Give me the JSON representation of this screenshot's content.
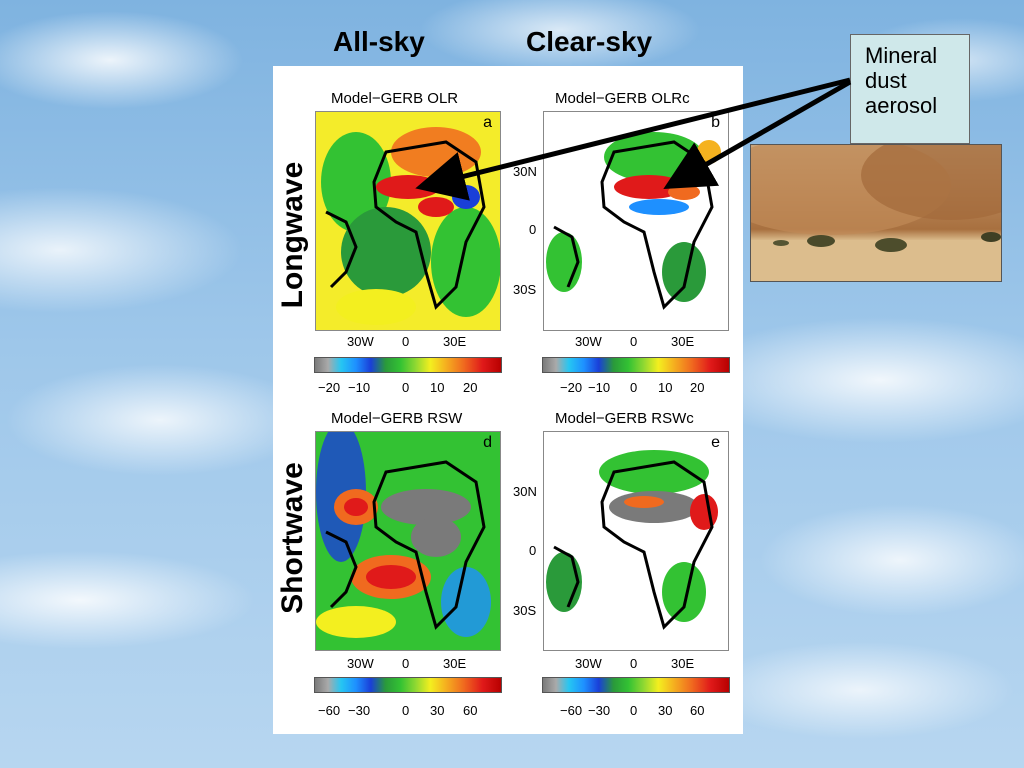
{
  "columns": {
    "all_sky": "All-sky",
    "clear_sky": "Clear-sky"
  },
  "rows": {
    "longwave": "Longwave",
    "shortwave": "Shortwave"
  },
  "maps": [
    {
      "id": "a",
      "title": "Model−GERB OLR",
      "letter": "a",
      "sky": "all"
    },
    {
      "id": "b",
      "title": "Model−GERB OLRc",
      "letter": "b",
      "sky": "clear"
    },
    {
      "id": "d",
      "title": "Model−GERB RSW",
      "letter": "d",
      "sky": "all"
    },
    {
      "id": "e",
      "title": "Model−GERB RSWc",
      "letter": "e",
      "sky": "clear"
    }
  ],
  "lon_ticks": [
    "30W",
    "0",
    "30E"
  ],
  "lat_ticks": [
    "30N",
    "0",
    "30S"
  ],
  "colorbar_longwave": {
    "ticks": [
      "−20",
      "−10",
      "0",
      "10",
      "20"
    ]
  },
  "colorbar_shortwave": {
    "ticks": [
      "−60",
      "−30",
      "0",
      "30",
      "60"
    ]
  },
  "annotation": {
    "line1": "Mineral",
    "line2": "dust",
    "line3": "aerosol"
  },
  "photo": {
    "subject": "dust storm over desert"
  },
  "colors": {
    "panel_bg": "#ffffff",
    "note_bg": "#cfe8ea",
    "arrow": "#000000"
  }
}
